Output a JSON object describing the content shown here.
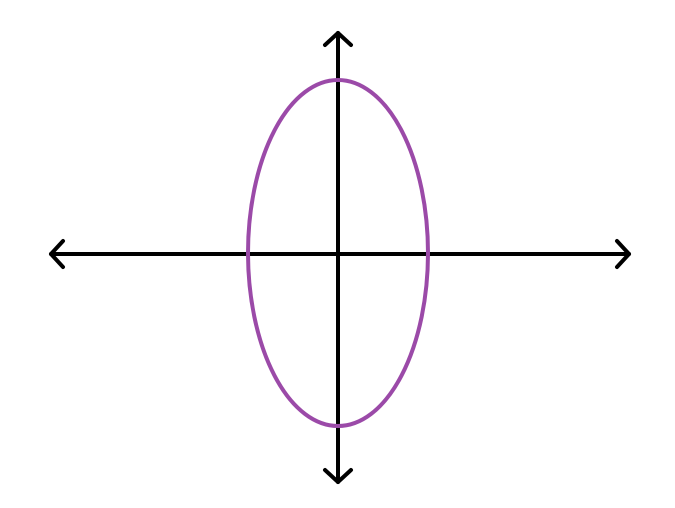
{
  "diagram": {
    "type": "vertical-ellipse-on-axes",
    "colors": {
      "background": "#ffffff",
      "axes": "#000000",
      "ellipse": "#9b4aa8"
    },
    "axes": {
      "horizontal": {
        "arrows": [
          "left",
          "right"
        ]
      },
      "vertical": {
        "arrows": [
          "up",
          "down"
        ]
      }
    },
    "ellipse": {
      "orientation": "vertical",
      "semi_axis_ratio": 1.92
    }
  }
}
